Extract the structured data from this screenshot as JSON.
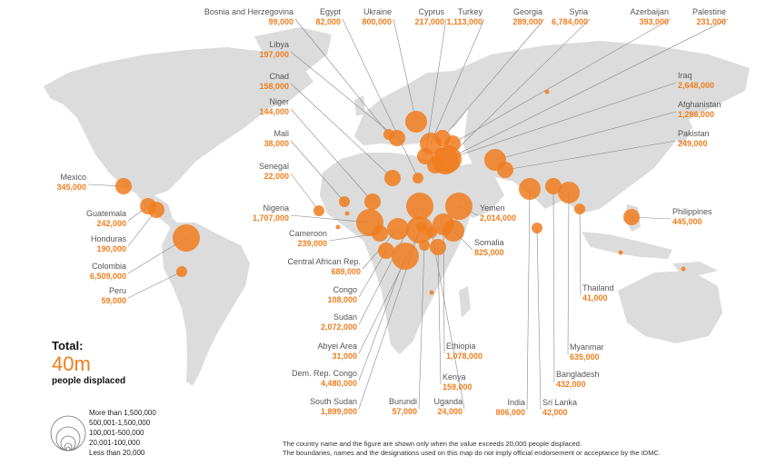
{
  "colors": {
    "land": "#dcdcdc",
    "bubble": "#f07d1e",
    "leader": "#777777"
  },
  "total": {
    "label": "Total:",
    "value": "40m",
    "subtitle": "people displaced"
  },
  "legend": {
    "items": [
      "More than 1,500,000",
      "500,001-1,500,000",
      "100,001-500,000",
      "20,001-100,000",
      "Less than 20,000"
    ]
  },
  "footnote": {
    "line1": "The country name and the figure are shown only when the value exceeds 20,000 people displaced.",
    "line2": "The boundaries, names and the designations used on this map do not imply official endorsement or acceptance by the IDMC."
  },
  "countries": [
    {
      "name": "Bosnia and Herzegovina",
      "value": "99,000"
    },
    {
      "name": "Egypt",
      "value": "82,000"
    },
    {
      "name": "Ukraine",
      "value": "800,000"
    },
    {
      "name": "Cyprus",
      "value": "217,000"
    },
    {
      "name": "Turkey",
      "value": "1,113,000"
    },
    {
      "name": "Georgia",
      "value": "289,000"
    },
    {
      "name": "Syria",
      "value": "6,784,000"
    },
    {
      "name": "Azerbaijan",
      "value": "393,000"
    },
    {
      "name": "Palestine",
      "value": "231,000"
    },
    {
      "name": "Libya",
      "value": "197,000"
    },
    {
      "name": "Chad",
      "value": "158,000"
    },
    {
      "name": "Niger",
      "value": "144,000"
    },
    {
      "name": "Mali",
      "value": "38,000"
    },
    {
      "name": "Senegal",
      "value": "22,000"
    },
    {
      "name": "Mexico",
      "value": "345,000"
    },
    {
      "name": "Guatemala",
      "value": "242,000"
    },
    {
      "name": "Honduras",
      "value": "190,000"
    },
    {
      "name": "Colombia",
      "value": "6,509,000"
    },
    {
      "name": "Peru",
      "value": "59,000"
    },
    {
      "name": "Nigeria",
      "value": "1,707,000"
    },
    {
      "name": "Cameroon",
      "value": "239,000"
    },
    {
      "name": "Central African Rep.",
      "value": "689,000"
    },
    {
      "name": "Congo",
      "value": "108,000"
    },
    {
      "name": "Sudan",
      "value": "2,072,000"
    },
    {
      "name": "Abyei Area",
      "value": "31,000"
    },
    {
      "name": "Dem. Rep. Congo",
      "value": "4,480,000"
    },
    {
      "name": "South Sudan",
      "value": "1,899,000"
    },
    {
      "name": "Burundi",
      "value": "57,000"
    },
    {
      "name": "Uganda",
      "value": "24,000"
    },
    {
      "name": "Kenya",
      "value": "159,000"
    },
    {
      "name": "Ethiopia",
      "value": "1,078,000"
    },
    {
      "name": "Yemen",
      "value": "2,014,000"
    },
    {
      "name": "Somalia",
      "value": "825,000"
    },
    {
      "name": "Iraq",
      "value": "2,648,000"
    },
    {
      "name": "Afghanistan",
      "value": "1,286,000"
    },
    {
      "name": "Pakistan",
      "value": "249,000"
    },
    {
      "name": "Philippines",
      "value": "445,000"
    },
    {
      "name": "Thailand",
      "value": "41,000"
    },
    {
      "name": "Myanmar",
      "value": "635,000"
    },
    {
      "name": "Bangladesh",
      "value": "432,000"
    },
    {
      "name": "Sri Lanka",
      "value": "42,000"
    },
    {
      "name": "India",
      "value": "806,000"
    }
  ]
}
